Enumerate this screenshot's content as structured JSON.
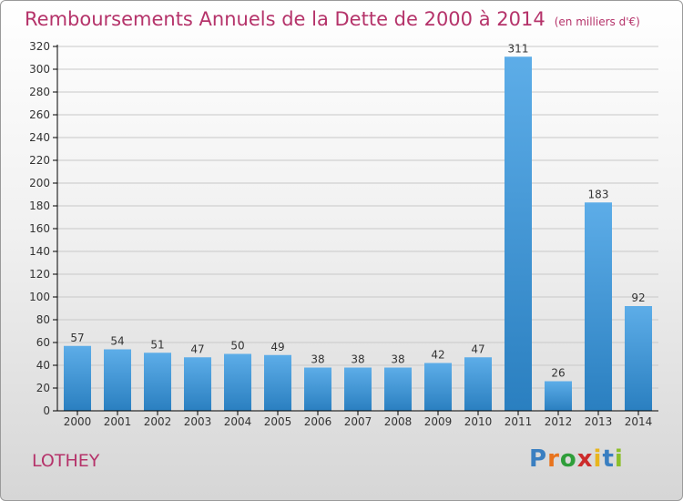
{
  "title": "Remboursements Annuels de la Dette de 2000 à 2014",
  "subtitle": "(en milliers d'€)",
  "commune": "LOTHEY",
  "brand": {
    "letters": [
      "P",
      "r",
      "o",
      "x",
      "i",
      "t",
      "i"
    ],
    "colors": [
      "#3a7fc1",
      "#e8731d",
      "#2f9e3a",
      "#cc2b2b",
      "#e8b51d",
      "#3a7fc1",
      "#8bbf2a"
    ]
  },
  "colors": {
    "title": "#b5336a",
    "bar_top": "#5dade8",
    "bar_bottom": "#2a7fc0",
    "grid": "#c8c8c8",
    "axis": "#000000",
    "label": "#333333"
  },
  "chart_data": {
    "type": "bar",
    "title": "Remboursements Annuels de la Dette de 2000 à 2014",
    "xlabel": "",
    "ylabel": "",
    "ylim": [
      0,
      320
    ],
    "yticks": [
      0,
      20,
      40,
      60,
      80,
      100,
      120,
      140,
      160,
      180,
      200,
      220,
      240,
      260,
      280,
      300,
      320
    ],
    "grid": true,
    "categories": [
      "2000",
      "2001",
      "2002",
      "2003",
      "2004",
      "2005",
      "2006",
      "2007",
      "2008",
      "2009",
      "2010",
      "2011",
      "2012",
      "2013",
      "2014"
    ],
    "values": [
      57,
      54,
      51,
      47,
      50,
      49,
      38,
      38,
      38,
      42,
      47,
      311,
      26,
      183,
      92
    ]
  }
}
